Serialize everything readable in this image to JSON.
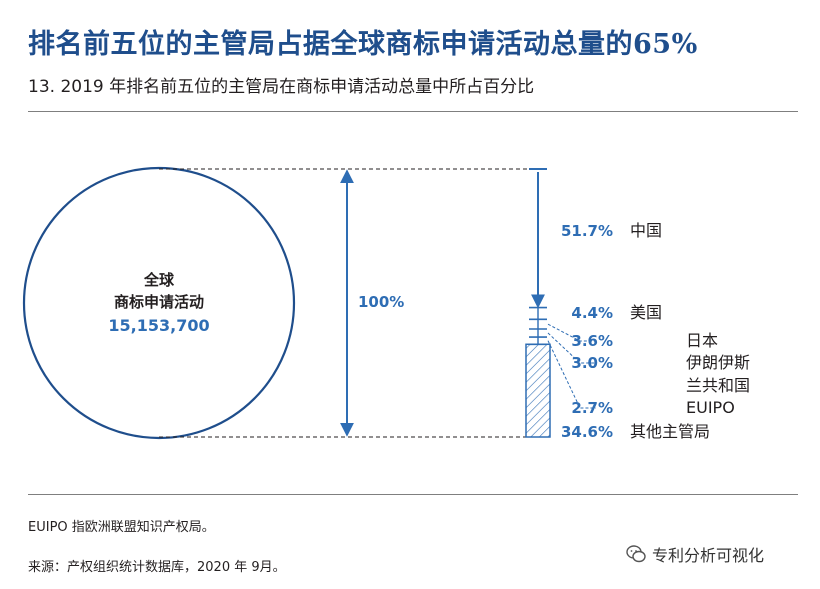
{
  "title": "排名前五位的主管局占据全球商标申请活动总量的65%",
  "subtitle": "13. 2019 年排名前五位的主管局在商标申请活动总量中所占百分比",
  "circle_label": [
    "全球",
    "商标申请活动"
  ],
  "circle_value": "15,153,700",
  "total_label": "100%",
  "note": "EUIPO 指欧洲联盟知识产权局。",
  "source": "来源：产权组织统计数据库，2020 年 9月。",
  "watermark": "专利分析可视化",
  "colors": {
    "title": "#1f4e8c",
    "accent": "#2e6db4",
    "text": "#231f20"
  },
  "chart_data": {
    "type": "bar",
    "total": 15153700,
    "categories": [
      "中国",
      "美国",
      "日本",
      "伊朗伊斯兰共和国",
      "EUIPO",
      "其他主管局"
    ],
    "values": [
      51.7,
      4.4,
      3.6,
      3.0,
      2.7,
      34.6
    ],
    "value_labels": [
      "51.7%",
      "4.4%",
      "3.6%",
      "3.0%",
      "2.7%",
      "34.6%"
    ],
    "category_lines": [
      [
        "中国"
      ],
      [
        "美国"
      ],
      [
        "日本"
      ],
      [
        "伊朗伊斯",
        "兰共和国"
      ],
      [
        "EUIPO"
      ],
      [
        "其他主管局"
      ]
    ],
    "unit": "%"
  }
}
